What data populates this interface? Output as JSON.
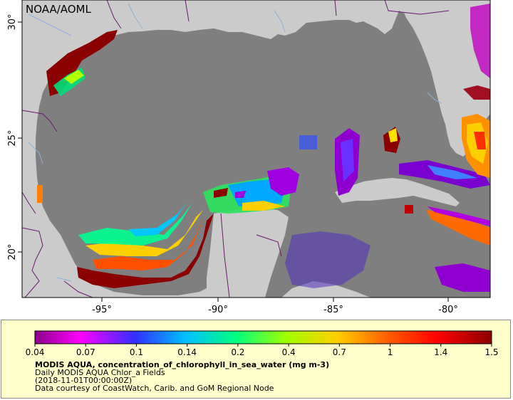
{
  "map": {
    "credit": "NOAA/AOML",
    "x_ticks": [
      "-95°",
      "-90°",
      "-85°",
      "-80°"
    ],
    "y_ticks": [
      "30°",
      "25°",
      "20°"
    ],
    "colors": {
      "land": "#cbcbcb",
      "ocean_nodata": "#7f7f7f",
      "boundaries": "#6a1a6a",
      "rivers": "#8fb0d8"
    }
  },
  "colorbar": {
    "ticks": [
      "0.04",
      "0.07",
      "0.1",
      "0.14",
      "0.2",
      "0.4",
      "0.7",
      "1",
      "1.4",
      "1.5"
    ],
    "palette": [
      "#8b008b",
      "#ff00ff",
      "#3030ff",
      "#00c0ff",
      "#00ff80",
      "#a0ff00",
      "#ffd000",
      "#ff6000",
      "#ff0000",
      "#8b0000"
    ]
  },
  "legend": {
    "title": "MODIS AQUA, concentration_of_chlorophyll_in_sea_water (mg m-3)",
    "line2": "Daily MODIS AQUA Chlor_a Fields",
    "line3": "(2018-11-01T00:00:00Z)",
    "line4": "Data courtesy of CoastWatch, Carib. and GoM Regional Node"
  }
}
